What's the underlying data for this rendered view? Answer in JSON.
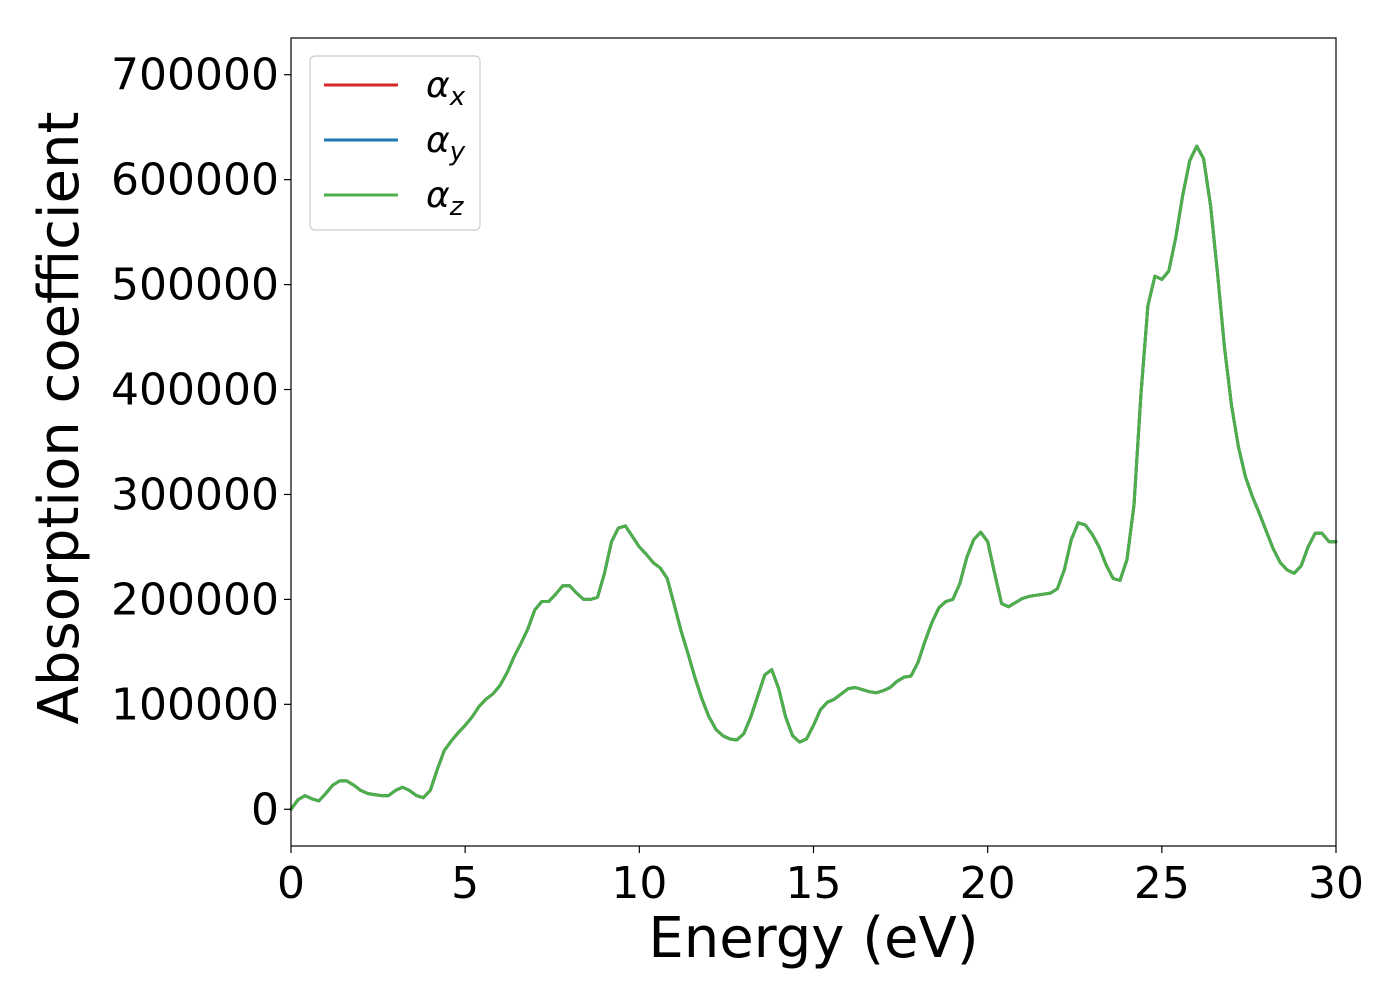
{
  "chart_data": {
    "type": "line",
    "title": "",
    "xlabel": "Energy (eV)",
    "ylabel": "Absorption coefficient",
    "xlim": [
      0,
      30
    ],
    "ylim": [
      -35000,
      735000
    ],
    "xticks": [
      0,
      5,
      10,
      15,
      20,
      25,
      30
    ],
    "yticks": [
      0,
      100000,
      200000,
      300000,
      400000,
      500000,
      600000,
      700000
    ],
    "grid": false,
    "legend": {
      "placement": "top-left",
      "entries": [
        {
          "symbol": "α",
          "subscript": "x",
          "color": "#d62728"
        },
        {
          "symbol": "α",
          "subscript": "y",
          "color": "#1f77b4"
        },
        {
          "symbol": "α",
          "subscript": "z",
          "color": "#4daf4a"
        }
      ]
    },
    "x": [
      0,
      0.2,
      0.4,
      0.6,
      0.8,
      1.0,
      1.2,
      1.4,
      1.6,
      1.8,
      2.0,
      2.2,
      2.4,
      2.6,
      2.8,
      3.0,
      3.2,
      3.4,
      3.6,
      3.8,
      4.0,
      4.2,
      4.4,
      4.6,
      4.8,
      5.0,
      5.2,
      5.4,
      5.6,
      5.8,
      6.0,
      6.2,
      6.4,
      6.6,
      6.8,
      7.0,
      7.2,
      7.4,
      7.6,
      7.8,
      8.0,
      8.2,
      8.4,
      8.6,
      8.8,
      9.0,
      9.2,
      9.4,
      9.6,
      9.8,
      10.0,
      10.2,
      10.4,
      10.6,
      10.8,
      11.0,
      11.2,
      11.4,
      11.6,
      11.8,
      12.0,
      12.2,
      12.4,
      12.6,
      12.8,
      13.0,
      13.2,
      13.4,
      13.6,
      13.8,
      14.0,
      14.2,
      14.4,
      14.6,
      14.8,
      15.0,
      15.2,
      15.4,
      15.6,
      15.8,
      16.0,
      16.2,
      16.4,
      16.6,
      16.8,
      17.0,
      17.2,
      17.4,
      17.6,
      17.8,
      18.0,
      18.2,
      18.4,
      18.6,
      18.8,
      19.0,
      19.2,
      19.4,
      19.6,
      19.8,
      20.0,
      20.2,
      20.4,
      20.6,
      20.8,
      21.0,
      21.2,
      21.4,
      21.6,
      21.8,
      22.0,
      22.2,
      22.4,
      22.6,
      22.8,
      23.0,
      23.2,
      23.4,
      23.6,
      23.8,
      24.0,
      24.2,
      24.4,
      24.6,
      24.8,
      25.0,
      25.2,
      25.4,
      25.6,
      25.8,
      26.0,
      26.2,
      26.4,
      26.6,
      26.8,
      27.0,
      27.2,
      27.4,
      27.6,
      27.8,
      28.0,
      28.2,
      28.4,
      28.6,
      28.8,
      29.0,
      29.2,
      29.4,
      29.6,
      29.8,
      30.0
    ],
    "series": [
      {
        "name": "α_x",
        "color": "#d62728",
        "values": [
          0,
          9000,
          13000,
          10000,
          8000,
          15000,
          23000,
          27000,
          27000,
          23000,
          18000,
          15000,
          14000,
          13000,
          13000,
          18000,
          21000,
          18000,
          13000,
          11000,
          18000,
          38000,
          56000,
          65000,
          73000,
          80000,
          88000,
          98000,
          105000,
          110000,
          118000,
          130000,
          145000,
          158000,
          172000,
          190000,
          198000,
          198000,
          205000,
          213000,
          213000,
          206000,
          200000,
          200000,
          202000,
          225000,
          255000,
          268000,
          270000,
          260000,
          250000,
          243000,
          235000,
          230000,
          220000,
          195000,
          170000,
          148000,
          125000,
          105000,
          88000,
          76000,
          70000,
          67000,
          66000,
          72000,
          88000,
          108000,
          128000,
          133000,
          115000,
          88000,
          70000,
          64000,
          67000,
          80000,
          95000,
          102000,
          105000,
          110000,
          115000,
          116000,
          114000,
          112000,
          111000,
          113000,
          116000,
          122000,
          126000,
          127000,
          140000,
          160000,
          178000,
          192000,
          198000,
          200000,
          215000,
          240000,
          257000,
          264000,
          255000,
          225000,
          196000,
          193000,
          197000,
          201000,
          203000,
          204000,
          205000,
          206000,
          210000,
          228000,
          257000,
          273000,
          271000,
          262000,
          250000,
          233000,
          220000,
          218000,
          238000,
          290000,
          395000,
          480000,
          508000,
          505000,
          513000,
          545000,
          585000,
          618000,
          632000,
          620000,
          575000,
          510000,
          440000,
          385000,
          345000,
          317000,
          298000,
          282000,
          265000,
          248000,
          235000,
          228000,
          225000,
          232000,
          250000,
          263000,
          263000,
          255000,
          255000
        ]
      },
      {
        "name": "α_y",
        "color": "#1f77b4",
        "values": [
          0,
          9000,
          13000,
          10000,
          8000,
          15000,
          23000,
          27000,
          27000,
          23000,
          18000,
          15000,
          14000,
          13000,
          13000,
          18000,
          21000,
          18000,
          13000,
          11000,
          18000,
          38000,
          56000,
          65000,
          73000,
          80000,
          88000,
          98000,
          105000,
          110000,
          118000,
          130000,
          145000,
          158000,
          172000,
          190000,
          198000,
          198000,
          205000,
          213000,
          213000,
          206000,
          200000,
          200000,
          202000,
          225000,
          255000,
          268000,
          270000,
          260000,
          250000,
          243000,
          235000,
          230000,
          220000,
          195000,
          170000,
          148000,
          125000,
          105000,
          88000,
          76000,
          70000,
          67000,
          66000,
          72000,
          88000,
          108000,
          128000,
          133000,
          115000,
          88000,
          70000,
          64000,
          67000,
          80000,
          95000,
          102000,
          105000,
          110000,
          115000,
          116000,
          114000,
          112000,
          111000,
          113000,
          116000,
          122000,
          126000,
          127000,
          140000,
          160000,
          178000,
          192000,
          198000,
          200000,
          215000,
          240000,
          257000,
          264000,
          255000,
          225000,
          196000,
          193000,
          197000,
          201000,
          203000,
          204000,
          205000,
          206000,
          210000,
          228000,
          257000,
          273000,
          271000,
          262000,
          250000,
          233000,
          220000,
          218000,
          238000,
          290000,
          395000,
          480000,
          508000,
          505000,
          513000,
          545000,
          585000,
          618000,
          632000,
          620000,
          575000,
          510000,
          440000,
          385000,
          345000,
          317000,
          298000,
          282000,
          265000,
          248000,
          235000,
          228000,
          225000,
          232000,
          250000,
          263000,
          263000,
          255000,
          255000
        ]
      },
      {
        "name": "α_z",
        "color": "#4daf4a",
        "values": [
          0,
          9000,
          13000,
          10000,
          8000,
          15000,
          23000,
          27000,
          27000,
          23000,
          18000,
          15000,
          14000,
          13000,
          13000,
          18000,
          21000,
          18000,
          13000,
          11000,
          18000,
          38000,
          56000,
          65000,
          73000,
          80000,
          88000,
          98000,
          105000,
          110000,
          118000,
          130000,
          145000,
          158000,
          172000,
          190000,
          198000,
          198000,
          205000,
          213000,
          213000,
          206000,
          200000,
          200000,
          202000,
          225000,
          255000,
          268000,
          270000,
          260000,
          250000,
          243000,
          235000,
          230000,
          220000,
          195000,
          170000,
          148000,
          125000,
          105000,
          88000,
          76000,
          70000,
          67000,
          66000,
          72000,
          88000,
          108000,
          128000,
          133000,
          115000,
          88000,
          70000,
          64000,
          67000,
          80000,
          95000,
          102000,
          105000,
          110000,
          115000,
          116000,
          114000,
          112000,
          111000,
          113000,
          116000,
          122000,
          126000,
          127000,
          140000,
          160000,
          178000,
          192000,
          198000,
          200000,
          215000,
          240000,
          257000,
          264000,
          255000,
          225000,
          196000,
          193000,
          197000,
          201000,
          203000,
          204000,
          205000,
          206000,
          210000,
          228000,
          257000,
          273000,
          271000,
          262000,
          250000,
          233000,
          220000,
          218000,
          238000,
          290000,
          395000,
          480000,
          508000,
          505000,
          513000,
          545000,
          585000,
          618000,
          632000,
          620000,
          575000,
          510000,
          440000,
          385000,
          345000,
          317000,
          298000,
          282000,
          265000,
          248000,
          235000,
          228000,
          225000,
          232000,
          250000,
          263000,
          263000,
          255000,
          255000
        ]
      }
    ]
  }
}
